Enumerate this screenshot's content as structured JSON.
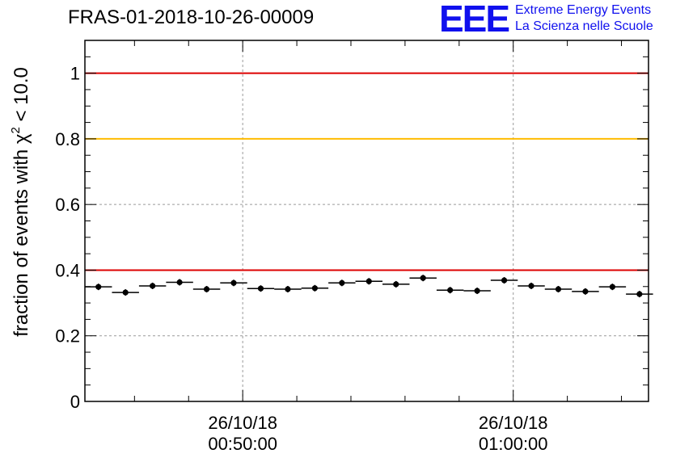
{
  "title": "FRAS-01-2018-10-26-00009",
  "logo": {
    "mark": "EEE",
    "line1": "Extreme Energy Events",
    "line2": "La Scienza nelle Scuole",
    "color": "#1010ee"
  },
  "chart_data": {
    "type": "scatter",
    "title": "FRAS-01-2018-10-26-00009",
    "ylabel_main": "fraction of events with χ",
    "ylabel_sup": "2",
    "ylabel_tail": " < 10.0",
    "ylim": [
      0,
      1.1
    ],
    "yticks": [
      0,
      0.2,
      0.4,
      0.6,
      0.8,
      1
    ],
    "ytick_labels": [
      "0",
      "0.2",
      "0.4",
      "0.6",
      "0.8",
      "1"
    ],
    "xlim": [
      "00:44:10",
      "01:05:00"
    ],
    "xticks": [
      {
        "time": "00:50:00",
        "date_label": "26/10/18",
        "time_label": "00:50:00"
      },
      {
        "time": "01:00:00",
        "date_label": "26/10/18",
        "time_label": "01:00:00"
      }
    ],
    "grid": true,
    "reference_lines": [
      {
        "y": 1.0,
        "color": "#dd0000"
      },
      {
        "y": 0.8,
        "color": "#ffbb00"
      },
      {
        "y": 0.4,
        "color": "#dd0000"
      }
    ],
    "bin_width_minutes": 1,
    "points": {
      "x": [
        "00:44:40",
        "00:45:40",
        "00:46:40",
        "00:47:40",
        "00:48:40",
        "00:49:40",
        "00:50:40",
        "00:51:40",
        "00:52:40",
        "00:53:40",
        "00:54:40",
        "00:55:40",
        "00:56:40",
        "00:57:40",
        "00:58:40",
        "00:59:40",
        "01:00:40",
        "01:01:40",
        "01:02:40",
        "01:03:40",
        "01:04:40"
      ],
      "y": [
        0.349,
        0.332,
        0.352,
        0.363,
        0.342,
        0.361,
        0.344,
        0.342,
        0.345,
        0.361,
        0.366,
        0.357,
        0.376,
        0.339,
        0.337,
        0.369,
        0.352,
        0.342,
        0.335,
        0.349,
        0.327
      ]
    },
    "point_color": "#000000"
  }
}
